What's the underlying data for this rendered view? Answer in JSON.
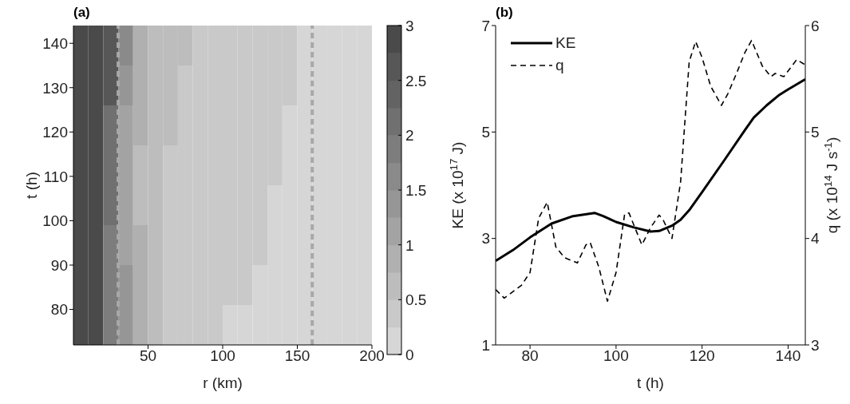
{
  "chart_data": [
    {
      "type": "heatmap",
      "title": "(a)",
      "xlabel": "r (km)",
      "ylabel": "t (h)",
      "x": [
        5,
        15,
        25,
        35,
        45,
        55,
        65,
        75,
        85,
        95,
        105,
        115,
        125,
        135,
        145,
        155,
        165,
        175,
        185,
        195
      ],
      "y": [
        139.5,
        130.5,
        121.5,
        112.5,
        103.5,
        94.5,
        85.5,
        76.5
      ],
      "cells": [
        [
          3,
          3,
          2.5,
          1.5,
          0.9,
          0.6,
          0.5,
          0.5,
          0.4,
          0.4,
          0.4,
          0.35,
          0.35,
          0.35,
          0.3,
          0.2,
          0.2,
          0.2,
          0.2,
          0.2
        ],
        [
          3,
          3,
          2.5,
          1.4,
          0.8,
          0.6,
          0.5,
          0.45,
          0.4,
          0.4,
          0.35,
          0.35,
          0.35,
          0.3,
          0.3,
          0.2,
          0.2,
          0.2,
          0.15,
          0.15
        ],
        [
          3,
          3,
          2.2,
          1.2,
          0.8,
          0.55,
          0.5,
          0.4,
          0.4,
          0.35,
          0.35,
          0.35,
          0.3,
          0.3,
          0.2,
          0.15,
          0.15,
          0.15,
          0.15,
          0.15
        ],
        [
          3,
          3,
          2,
          1.1,
          0.7,
          0.5,
          0.4,
          0.4,
          0.35,
          0.35,
          0.35,
          0.3,
          0.3,
          0.3,
          0.2,
          0.15,
          0.15,
          0.15,
          0.15,
          0.15
        ],
        [
          3,
          3,
          2,
          1.1,
          0.7,
          0.5,
          0.4,
          0.35,
          0.35,
          0.3,
          0.3,
          0.3,
          0.3,
          0.2,
          0.15,
          0.15,
          0.15,
          0.15,
          0.15,
          0.15
        ],
        [
          3,
          3,
          1.8,
          1.2,
          0.8,
          0.55,
          0.4,
          0.35,
          0.3,
          0.3,
          0.3,
          0.3,
          0.3,
          0.2,
          0.15,
          0.15,
          0.15,
          0.15,
          0.15,
          0.15
        ],
        [
          3,
          3,
          1.8,
          1.3,
          0.9,
          0.55,
          0.45,
          0.35,
          0.3,
          0.3,
          0.3,
          0.25,
          0.2,
          0.2,
          0.15,
          0.15,
          0.15,
          0.15,
          0.15,
          0.15
        ],
        [
          3,
          3,
          1.8,
          1.3,
          0.9,
          0.6,
          0.45,
          0.35,
          0.3,
          0.3,
          0.2,
          0.2,
          0.15,
          0.15,
          0.15,
          0.15,
          0.15,
          0.15,
          0.15,
          0.15
        ]
      ],
      "clim": [
        0,
        3
      ],
      "cticks": [
        0,
        0.5,
        1,
        1.5,
        2,
        2.5,
        3
      ],
      "xlim": [
        0,
        200
      ],
      "xticks": [
        50,
        100,
        150,
        200
      ],
      "ylim": [
        72,
        144
      ],
      "yticks": [
        80,
        90,
        100,
        110,
        120,
        130,
        140
      ],
      "ref_lines": [
        {
          "axis": "x",
          "value": 30,
          "color": "#a8a8a8",
          "line_style": "dashed"
        },
        {
          "axis": "x",
          "value": 160,
          "color": "#a8a8a8",
          "line_style": "dashed"
        }
      ]
    },
    {
      "type": "line",
      "title": "(b)",
      "xlabel": "t (h)",
      "ylabel": "KE (x 10$^{17}$ J)",
      "y2label": "q (x 10$^{14}$ J s$^{-1}$)",
      "xlim": [
        72,
        144
      ],
      "xticks": [
        80,
        100,
        120,
        140
      ],
      "ylim": [
        1,
        7
      ],
      "yticks": [
        1,
        3,
        5,
        7
      ],
      "y2lim": [
        3,
        6
      ],
      "y2ticks": [
        3,
        4,
        5,
        6
      ],
      "legend": "top left",
      "series": [
        {
          "name": "KE",
          "color": "#000000",
          "line_style": "solid",
          "x": [
            72,
            76,
            80,
            85,
            90,
            95,
            97,
            100,
            104,
            108,
            110,
            113,
            115,
            117,
            120,
            125,
            130,
            132,
            135,
            138,
            140,
            144
          ],
          "values": [
            2.58,
            2.78,
            3.02,
            3.28,
            3.42,
            3.48,
            3.42,
            3.31,
            3.21,
            3.13,
            3.14,
            3.24,
            3.35,
            3.53,
            3.87,
            4.45,
            5.04,
            5.27,
            5.5,
            5.7,
            5.8,
            5.99
          ]
        },
        {
          "name": "q",
          "color": "#000000",
          "line_style": "dashed",
          "axis": "y2",
          "x": [
            72,
            74,
            76,
            78,
            80,
            82,
            84,
            86,
            88,
            91,
            93,
            94,
            96,
            98,
            100,
            102,
            103,
            106,
            108,
            110,
            111,
            113,
            115,
            117,
            118.5,
            120,
            122,
            124.5,
            126,
            128,
            130,
            131.5,
            134,
            136,
            137,
            139,
            142,
            144
          ],
          "values": [
            3.52,
            3.44,
            3.5,
            3.56,
            3.68,
            4.19,
            4.34,
            3.92,
            3.82,
            3.77,
            3.94,
            3.96,
            3.73,
            3.41,
            3.68,
            4.23,
            4.24,
            3.94,
            4.1,
            4.22,
            4.17,
            4.0,
            4.53,
            5.66,
            5.85,
            5.7,
            5.43,
            5.25,
            5.36,
            5.55,
            5.75,
            5.86,
            5.62,
            5.52,
            5.55,
            5.52,
            5.68,
            5.63
          ]
        }
      ]
    }
  ]
}
